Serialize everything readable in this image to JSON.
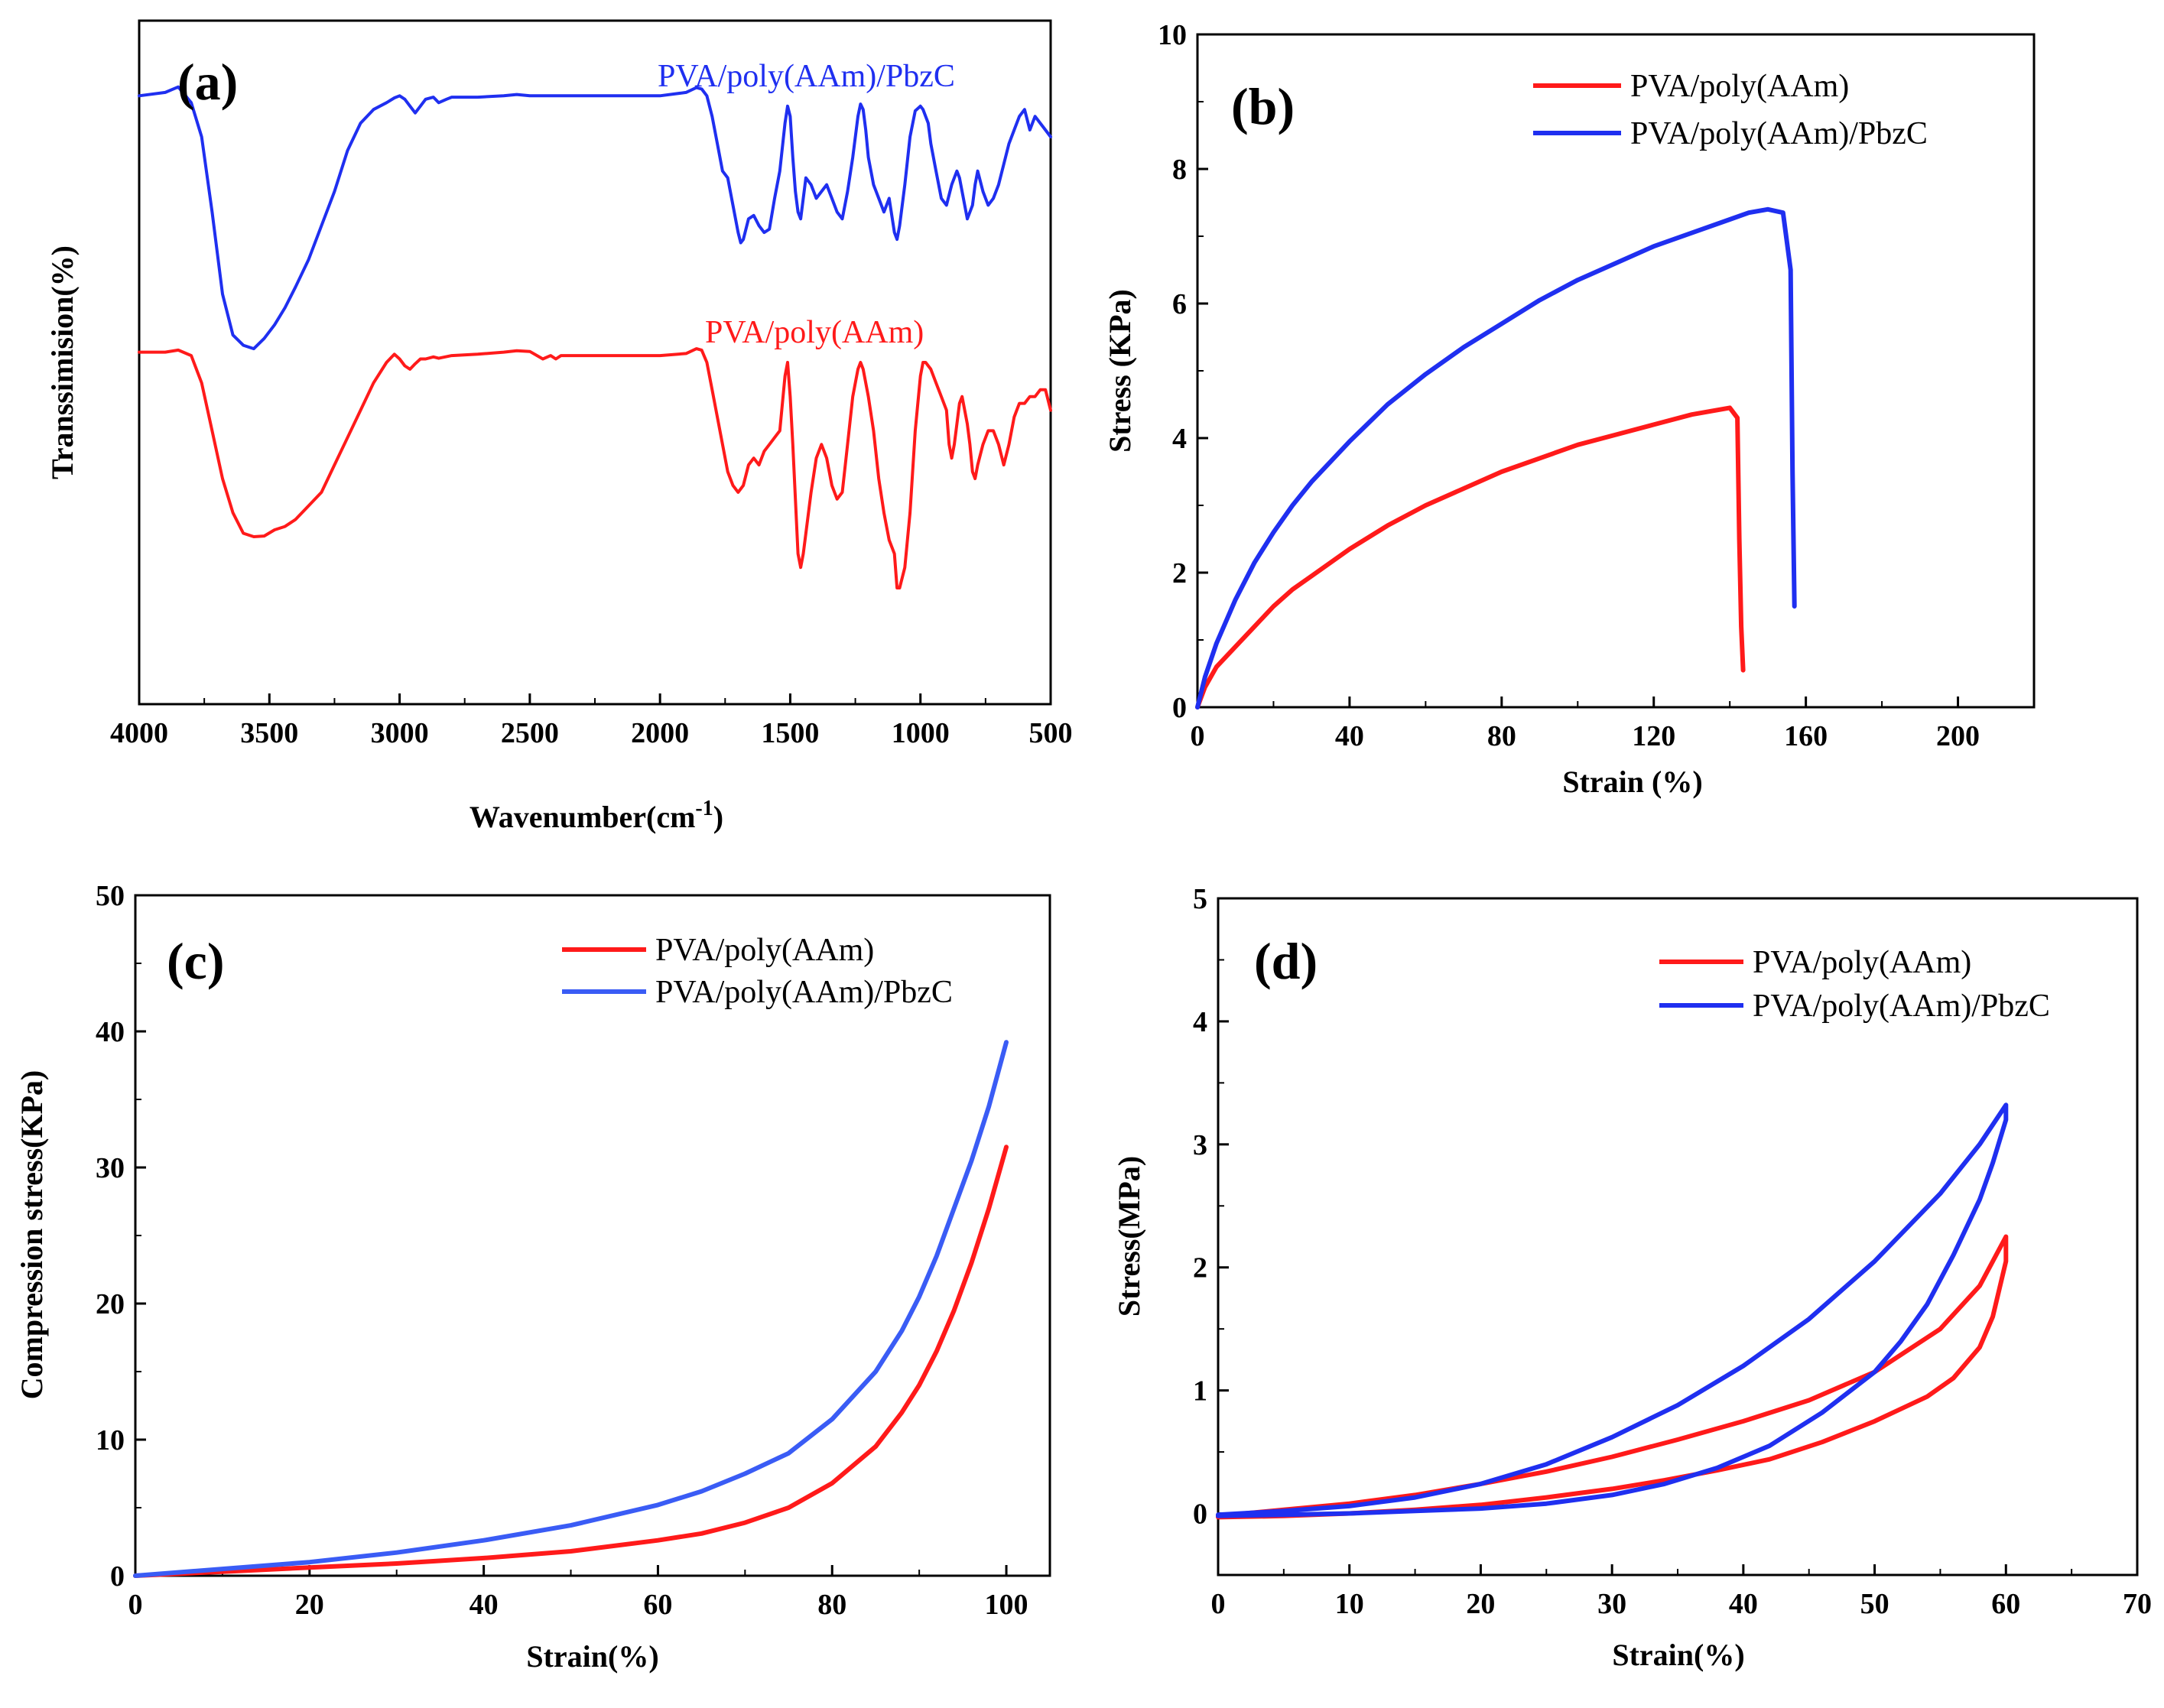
{
  "colors": {
    "red": "#ff1a1a",
    "blue": "#1f2ff0",
    "blue_light": "#3a5cf5"
  },
  "chart_data": [
    {
      "id": "a",
      "panel_label": "(a)",
      "type": "line",
      "title": "",
      "xlabel": "Wavenumber(cm",
      "xlabel_sup": "-1",
      "xlabel_close": ")",
      "ylabel": "Transsimision(%)",
      "xlim": [
        4000,
        500
      ],
      "ylim": [
        0,
        100
      ],
      "xticks": [
        "4000",
        "3500",
        "3000",
        "2500",
        "2000",
        "1500",
        "1000",
        "500"
      ],
      "y_tick_labels": false,
      "series": [
        {
          "name": "PVA/poly(AAm)/PbzC",
          "color": "#1f2ff0",
          "x": [
            4000,
            3900,
            3850,
            3800,
            3760,
            3720,
            3680,
            3640,
            3600,
            3560,
            3520,
            3480,
            3440,
            3400,
            3350,
            3300,
            3250,
            3200,
            3150,
            3100,
            3050,
            3020,
            3000,
            2980,
            2960,
            2940,
            2920,
            2900,
            2870,
            2850,
            2820,
            2800,
            2700,
            2600,
            2550,
            2500,
            2400,
            2300,
            2200,
            2100,
            2000,
            1900,
            1860,
            1840,
            1820,
            1800,
            1780,
            1760,
            1740,
            1720,
            1700,
            1690,
            1680,
            1660,
            1640,
            1620,
            1600,
            1580,
            1560,
            1540,
            1520,
            1510,
            1500,
            1490,
            1480,
            1470,
            1460,
            1450,
            1440,
            1420,
            1400,
            1380,
            1360,
            1340,
            1320,
            1300,
            1280,
            1260,
            1240,
            1230,
            1220,
            1210,
            1200,
            1180,
            1160,
            1140,
            1120,
            1100,
            1090,
            1080,
            1060,
            1040,
            1020,
            1000,
            990,
            980,
            970,
            960,
            940,
            920,
            900,
            880,
            860,
            850,
            840,
            830,
            820,
            800,
            790,
            780,
            760,
            740,
            720,
            700,
            680,
            660,
            640,
            620,
            600,
            580,
            560,
            540,
            520,
            500
          ],
          "y": [
            89,
            89.5,
            90.3,
            88,
            83,
            72,
            60,
            54,
            52.5,
            52,
            53.5,
            55.5,
            58,
            61,
            65,
            70,
            75,
            81,
            85,
            87,
            88,
            88.7,
            89,
            88.5,
            87.5,
            86.5,
            87.5,
            88.5,
            88.8,
            88,
            88.5,
            88.8,
            88.8,
            89,
            89.2,
            89,
            89,
            89,
            89,
            89,
            89,
            89.5,
            90.2,
            90,
            89,
            86,
            82,
            78,
            77,
            73,
            69,
            67.5,
            68,
            71,
            71.5,
            70,
            69,
            69.5,
            74,
            78,
            85,
            87.5,
            86,
            80,
            75,
            72,
            71,
            74,
            77,
            76,
            74,
            75,
            76,
            74,
            72,
            71,
            75,
            80,
            86,
            87.8,
            87,
            84,
            80,
            76,
            74,
            72,
            74,
            69,
            68,
            70,
            76,
            83,
            86.8,
            87.5,
            87,
            86,
            85,
            82,
            78,
            74,
            73,
            76,
            78,
            77,
            75,
            73,
            71,
            73,
            76,
            78,
            75,
            73,
            74,
            76,
            79,
            82,
            84,
            86,
            87,
            84,
            86,
            85,
            84,
            83
          ]
        },
        {
          "name": "PVA/poly(AAm)",
          "color": "#ff1a1a",
          "x": [
            4000,
            3900,
            3850,
            3800,
            3760,
            3720,
            3680,
            3640,
            3600,
            3560,
            3520,
            3480,
            3440,
            3400,
            3350,
            3300,
            3250,
            3200,
            3150,
            3100,
            3050,
            3020,
            3000,
            2980,
            2960,
            2940,
            2920,
            2900,
            2870,
            2850,
            2800,
            2700,
            2600,
            2550,
            2500,
            2450,
            2420,
            2400,
            2380,
            2300,
            2200,
            2100,
            2000,
            1900,
            1860,
            1840,
            1820,
            1800,
            1780,
            1760,
            1740,
            1720,
            1700,
            1680,
            1660,
            1640,
            1620,
            1600,
            1580,
            1560,
            1540,
            1520,
            1510,
            1500,
            1490,
            1480,
            1470,
            1460,
            1450,
            1440,
            1420,
            1400,
            1380,
            1360,
            1340,
            1320,
            1300,
            1280,
            1260,
            1240,
            1230,
            1220,
            1200,
            1180,
            1160,
            1140,
            1120,
            1100,
            1090,
            1080,
            1060,
            1040,
            1020,
            1000,
            990,
            980,
            960,
            940,
            920,
            900,
            890,
            880,
            870,
            860,
            850,
            840,
            820,
            810,
            800,
            790,
            780,
            760,
            740,
            720,
            700,
            680,
            660,
            640,
            620,
            600,
            580,
            560,
            540,
            520,
            500
          ],
          "y": [
            51.5,
            51.5,
            51.8,
            51,
            47,
            40,
            33,
            28,
            25,
            24.5,
            24.6,
            25.5,
            26,
            27,
            29,
            31,
            35,
            39,
            43,
            47,
            50,
            51.2,
            50.5,
            49.5,
            49,
            49.8,
            50.5,
            50.5,
            50.8,
            50.6,
            51,
            51.2,
            51.5,
            51.7,
            51.6,
            50.5,
            51,
            50.5,
            51,
            51,
            51,
            51,
            51,
            51.3,
            52,
            51.8,
            50,
            46,
            42,
            38,
            34,
            32,
            31,
            32,
            35,
            36,
            35,
            37,
            38,
            39,
            40,
            48,
            50,
            45,
            38,
            30,
            22,
            20,
            22,
            25,
            31,
            36,
            38,
            36,
            32,
            30,
            31,
            38,
            45,
            49,
            50,
            49,
            45,
            40,
            33,
            28,
            24,
            22,
            17,
            17,
            20,
            28,
            40,
            48,
            50,
            50,
            49,
            47,
            45,
            43,
            38,
            36,
            38,
            41,
            44,
            45,
            41,
            38,
            34,
            33,
            35,
            38,
            40,
            40,
            38,
            35,
            38,
            42,
            44,
            44,
            45,
            45,
            46,
            46,
            43
          ]
        }
      ]
    },
    {
      "id": "b",
      "panel_label": "(b)",
      "type": "line",
      "title": "",
      "xlabel": "Strain (%)",
      "ylabel": "Stress (KPa)",
      "xlim": [
        0,
        220
      ],
      "ylim": [
        0,
        10
      ],
      "xticks": [
        "0",
        "40",
        "80",
        "120",
        "160",
        "200"
      ],
      "yticks": [
        "0",
        "2",
        "4",
        "6",
        "8",
        "10"
      ],
      "series": [
        {
          "name": "PVA/poly(AAm)",
          "color": "#ff1a1a",
          "x": [
            0,
            2,
            5,
            10,
            15,
            20,
            25,
            30,
            40,
            50,
            60,
            70,
            80,
            90,
            100,
            110,
            120,
            130,
            135,
            140,
            142,
            142.5,
            143,
            143.5
          ],
          "y": [
            0,
            0.3,
            0.6,
            0.9,
            1.2,
            1.5,
            1.75,
            1.95,
            2.35,
            2.7,
            3.0,
            3.25,
            3.5,
            3.7,
            3.9,
            4.05,
            4.2,
            4.35,
            4.4,
            4.45,
            4.3,
            2.5,
            1.2,
            0.55
          ]
        },
        {
          "name": "PVA/poly(AAm)/PbzC",
          "color": "#1f2ff0",
          "x": [
            0,
            2,
            5,
            10,
            15,
            20,
            25,
            30,
            40,
            50,
            60,
            70,
            80,
            90,
            100,
            110,
            120,
            130,
            140,
            145,
            150,
            154,
            156,
            156.5,
            157
          ],
          "y": [
            0,
            0.45,
            0.95,
            1.6,
            2.15,
            2.6,
            3.0,
            3.35,
            3.95,
            4.5,
            4.95,
            5.35,
            5.7,
            6.05,
            6.35,
            6.6,
            6.85,
            7.05,
            7.25,
            7.35,
            7.4,
            7.35,
            6.5,
            3.5,
            1.5
          ]
        }
      ]
    },
    {
      "id": "c",
      "panel_label": "(c)",
      "type": "line",
      "title": "",
      "xlabel": "Strain(%)",
      "ylabel": "Compression stress(KPa)",
      "xlim": [
        0,
        105
      ],
      "ylim": [
        0,
        50
      ],
      "xticks": [
        "0",
        "20",
        "40",
        "60",
        "80",
        "100"
      ],
      "yticks": [
        "0",
        "10",
        "20",
        "30",
        "40",
        "50"
      ],
      "series": [
        {
          "name": "PVA/poly(AAm)",
          "color": "#ff1a1a",
          "x": [
            0,
            10,
            20,
            30,
            40,
            50,
            60,
            65,
            70,
            75,
            80,
            85,
            88,
            90,
            92,
            94,
            96,
            98,
            100
          ],
          "y": [
            0,
            0.3,
            0.6,
            0.9,
            1.3,
            1.8,
            2.6,
            3.1,
            3.9,
            5.0,
            6.8,
            9.5,
            12.0,
            14.0,
            16.5,
            19.5,
            23.0,
            27.0,
            31.5
          ]
        },
        {
          "name": "PVA/poly(AAm)/PbzC",
          "color": "#3a5cf5",
          "x": [
            0,
            10,
            20,
            30,
            40,
            50,
            60,
            65,
            70,
            75,
            80,
            85,
            88,
            90,
            92,
            94,
            96,
            98,
            100
          ],
          "y": [
            0,
            0.5,
            1.0,
            1.7,
            2.6,
            3.7,
            5.2,
            6.2,
            7.5,
            9.0,
            11.5,
            15.0,
            18.0,
            20.5,
            23.5,
            27.0,
            30.5,
            34.5,
            39.2
          ]
        }
      ]
    },
    {
      "id": "d",
      "panel_label": "(d)",
      "type": "line",
      "title": "",
      "xlabel": "Strain(%)",
      "ylabel": "Stress(MPa)",
      "xlim": [
        0,
        70
      ],
      "ylim": [
        -0.5,
        5
      ],
      "xticks": [
        "0",
        "10",
        "20",
        "30",
        "40",
        "50",
        "60",
        "70"
      ],
      "yticks": [
        "0",
        "1",
        "2",
        "3",
        "4",
        "5"
      ],
      "series": [
        {
          "name": "PVA/poly(AAm)",
          "color": "#ff1a1a",
          "x": [
            0,
            5,
            10,
            15,
            20,
            25,
            30,
            35,
            40,
            45,
            50,
            55,
            58,
            60,
            60,
            59,
            58,
            56,
            54,
            52,
            50,
            46,
            42,
            38,
            34,
            30,
            25,
            20,
            15,
            10,
            5,
            0
          ],
          "y": [
            -0.02,
            0.03,
            0.08,
            0.15,
            0.24,
            0.34,
            0.46,
            0.6,
            0.75,
            0.92,
            1.15,
            1.5,
            1.85,
            2.25,
            2.05,
            1.6,
            1.35,
            1.1,
            0.95,
            0.85,
            0.75,
            0.58,
            0.44,
            0.35,
            0.27,
            0.2,
            0.13,
            0.07,
            0.03,
            0.0,
            -0.02,
            -0.03
          ]
        },
        {
          "name": "PVA/poly(AAm)/PbzC",
          "color": "#1f2ff0",
          "x": [
            0,
            5,
            10,
            15,
            20,
            25,
            30,
            35,
            40,
            45,
            50,
            55,
            58,
            60,
            60,
            59,
            58,
            56,
            54,
            52,
            50,
            46,
            42,
            38,
            34,
            30,
            25,
            20,
            15,
            10,
            5,
            0
          ],
          "y": [
            -0.01,
            0.02,
            0.06,
            0.13,
            0.24,
            0.4,
            0.62,
            0.88,
            1.2,
            1.58,
            2.05,
            2.6,
            3.0,
            3.32,
            3.2,
            2.85,
            2.55,
            2.1,
            1.7,
            1.4,
            1.15,
            0.82,
            0.55,
            0.37,
            0.24,
            0.15,
            0.08,
            0.04,
            0.02,
            0.0,
            -0.01,
            -0.02
          ]
        }
      ]
    }
  ]
}
